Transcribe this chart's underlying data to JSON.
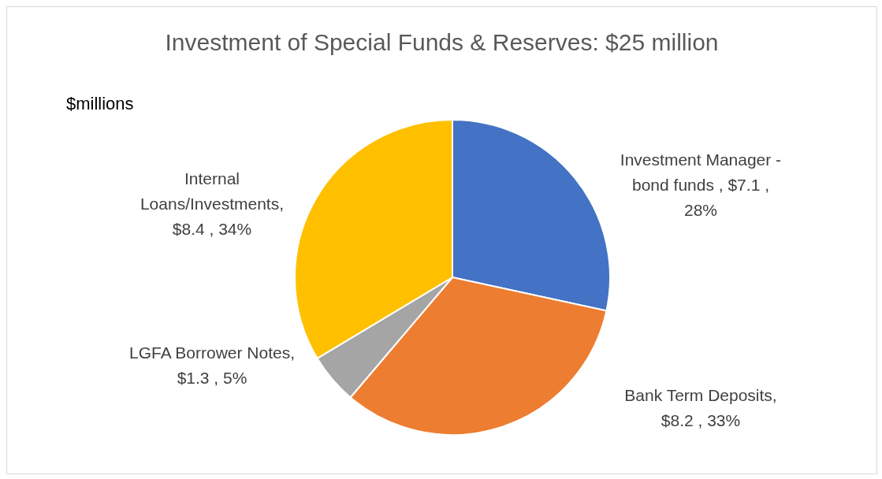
{
  "chart_data": {
    "type": "pie",
    "title": "Investment of Special Funds & Reserves: $25 million",
    "annotations": [
      "$millions"
    ],
    "categories": [
      "Investment Manager - bond funds",
      "Bank Term Deposits",
      "LGFA Borrower Notes",
      "Internal Loans/Investments"
    ],
    "values": [
      7.1,
      8.2,
      1.3,
      8.4
    ],
    "colors": [
      "#4472c4",
      "#ed7d31",
      "#a5a5a5",
      "#ffc000"
    ],
    "value_labels": [
      " , $7.1 , 28%",
      ", $8.2 , 33%",
      ", $1.3 , 5%",
      ", $8.4 , 34%"
    ],
    "legend": false
  }
}
